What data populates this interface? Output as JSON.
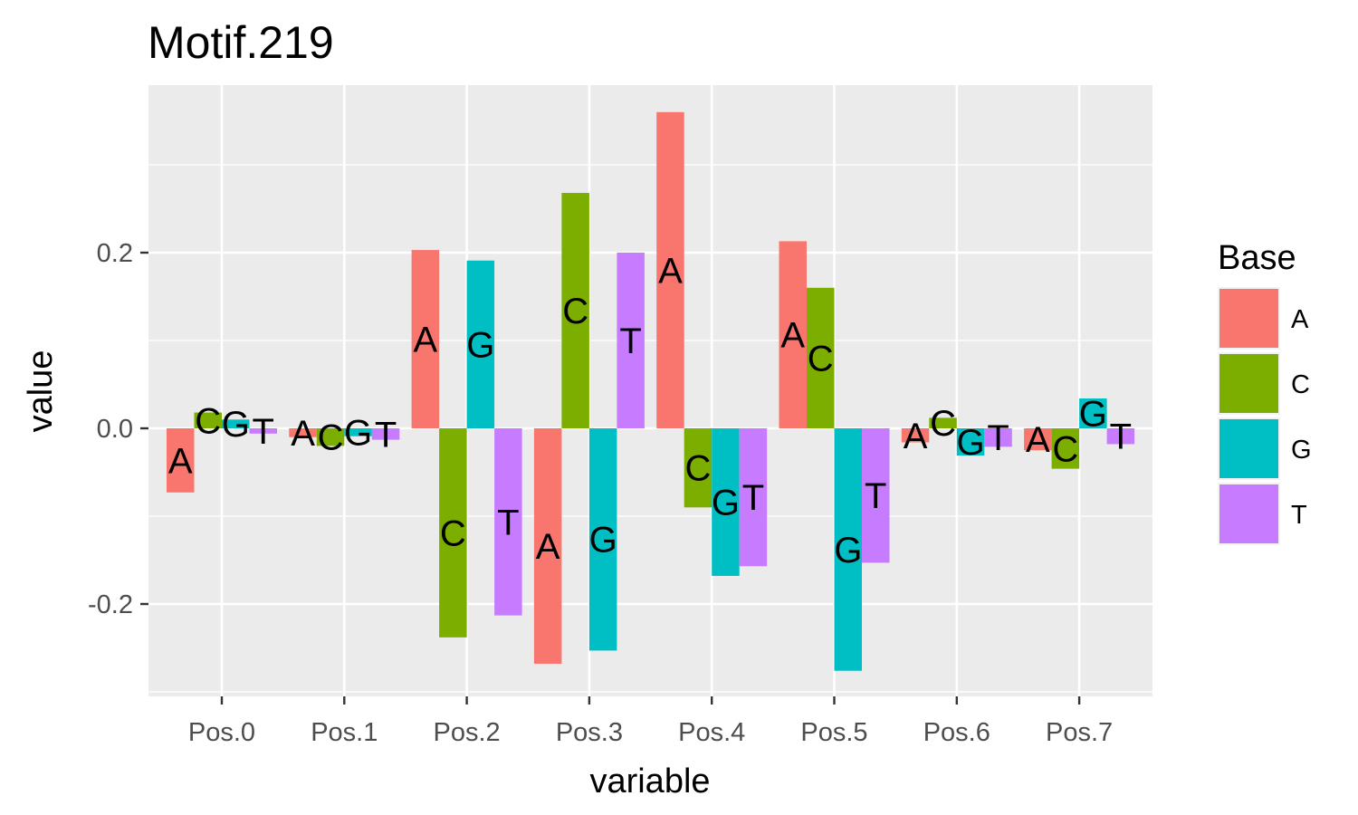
{
  "chart_data": {
    "type": "bar",
    "title": "Motif.219",
    "xlabel": "variable",
    "ylabel": "value",
    "categories": [
      "Pos.0",
      "Pos.1",
      "Pos.2",
      "Pos.3",
      "Pos.4",
      "Pos.5",
      "Pos.6",
      "Pos.7"
    ],
    "y_ticks": [
      -0.2,
      0.0,
      0.2
    ],
    "y_tick_labels": [
      "-0.2",
      "0.0",
      "0.2"
    ],
    "ylim": [
      -0.305,
      0.39
    ],
    "grid": true,
    "legend": {
      "title": "Base",
      "position": "right"
    },
    "series": [
      {
        "name": "A",
        "color": "#F8766D",
        "values": [
          -0.073,
          -0.01,
          0.203,
          -0.268,
          0.36,
          0.213,
          -0.016,
          -0.025
        ]
      },
      {
        "name": "C",
        "color": "#7CAE00",
        "values": [
          0.018,
          -0.02,
          -0.238,
          0.268,
          -0.09,
          0.16,
          0.012,
          -0.046
        ]
      },
      {
        "name": "G",
        "color": "#00BFC4",
        "values": [
          0.01,
          -0.009,
          0.191,
          -0.253,
          -0.168,
          -0.276,
          -0.031,
          0.034
        ]
      },
      {
        "name": "T",
        "color": "#C77CFF",
        "values": [
          -0.006,
          -0.013,
          -0.213,
          0.2,
          -0.157,
          -0.153,
          -0.021,
          -0.018
        ]
      }
    ]
  }
}
